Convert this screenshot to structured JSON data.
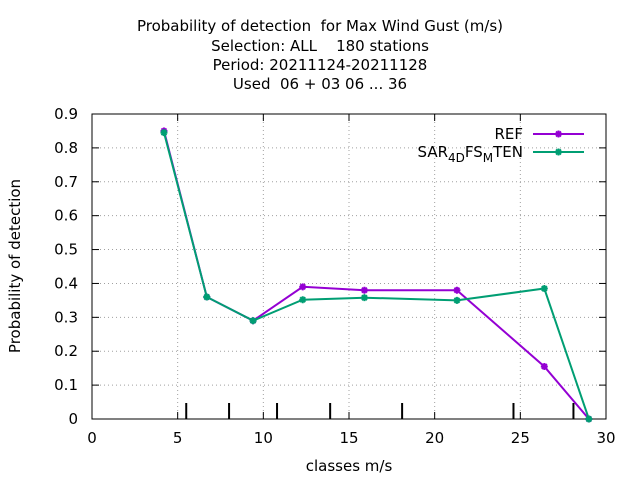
{
  "chart_data": {
    "type": "line",
    "title_lines": [
      "Probability of detection  for Max Wind Gust (m/s)",
      "Selection: ALL    180 stations",
      "Period: 20211124-20211128",
      "Used  06 + 03 06 ... 36"
    ],
    "xlabel": "classes m/s",
    "ylabel": "Probability of detection",
    "xlim": [
      0,
      30
    ],
    "ylim": [
      0,
      0.9
    ],
    "x_ticks": [
      "0",
      "5",
      "10",
      "15",
      "20",
      "25",
      "30"
    ],
    "y_ticks": [
      "0",
      "0.1",
      "0.2",
      "0.3",
      "0.4",
      "0.5",
      "0.6",
      "0.7",
      "0.8",
      "0.9"
    ],
    "grid": true,
    "legend_position": "top-right",
    "class_markers": [
      5.5,
      8.0,
      10.8,
      13.9,
      18.1,
      24.6,
      28.1
    ],
    "series": [
      {
        "name": "REF",
        "color": "#9400d3",
        "x": [
          4.2,
          6.7,
          9.4,
          12.3,
          15.9,
          21.3,
          26.4,
          29.0
        ],
        "values": [
          0.85,
          0.36,
          0.29,
          0.39,
          0.38,
          0.38,
          0.155,
          0.0
        ]
      },
      {
        "name": "SAR_4DFS_MTEN",
        "color": "#009e73",
        "x": [
          4.2,
          6.7,
          9.4,
          12.3,
          15.9,
          21.3,
          26.4,
          29.0
        ],
        "values": [
          0.845,
          0.36,
          0.29,
          0.352,
          0.358,
          0.35,
          0.385,
          0.0
        ]
      }
    ]
  }
}
